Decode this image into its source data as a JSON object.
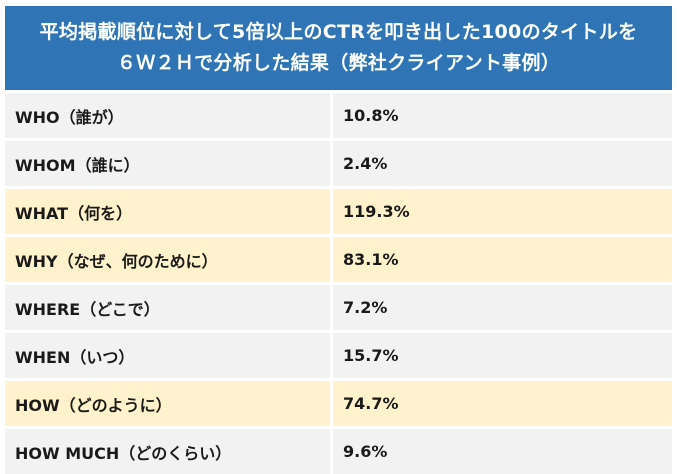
{
  "header": {
    "line1": "平均掲載順位に対して5倍以上のCTRを叩き出した100のタイトルを",
    "line2": "６Ｗ２Ｈで分析した結果（弊社クライアント事例）"
  },
  "rows": [
    {
      "label": "WHO（誰が）",
      "value": "10.8%"
    },
    {
      "label": "WHOM（誰に）",
      "value": "2.4%"
    },
    {
      "label": "WHAT（何を）",
      "value": "119.3%"
    },
    {
      "label": "WHY（なぜ、何のために）",
      "value": "83.1%"
    },
    {
      "label": "WHERE（どこで）",
      "value": "7.2%"
    },
    {
      "label": "WHEN（いつ）",
      "value": "15.7%"
    },
    {
      "label": "HOW（どのように）",
      "value": "74.7%"
    },
    {
      "label": "HOW MUCH（どのくらい）",
      "value": "9.6%"
    }
  ],
  "colors": {
    "header_bg": "#2f75b5",
    "row_plain": "#f2f2f2",
    "row_highlight": "#fff2cc"
  }
}
